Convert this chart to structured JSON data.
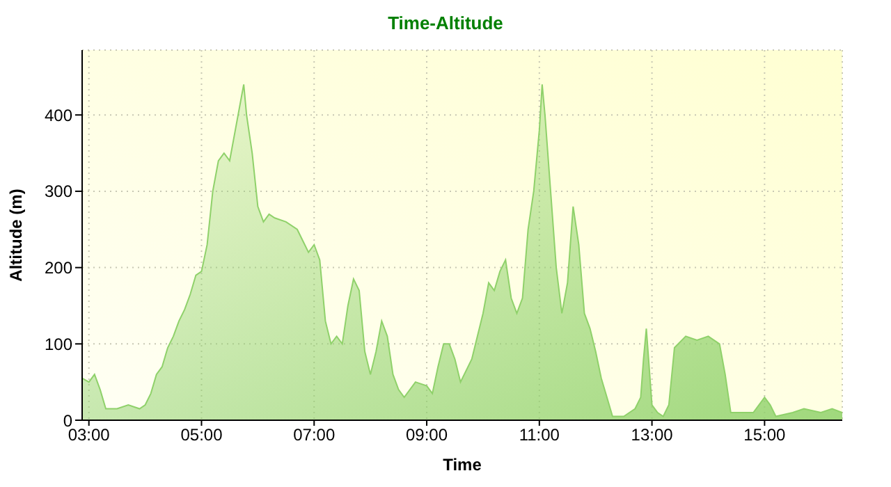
{
  "chart_data": {
    "type": "area",
    "title": "Time-Altitude",
    "xlabel": "Time",
    "ylabel": "Altitude (m)",
    "x": [
      2.88,
      3.0,
      3.1,
      3.2,
      3.3,
      3.5,
      3.7,
      3.9,
      4.0,
      4.1,
      4.2,
      4.3,
      4.4,
      4.5,
      4.6,
      4.7,
      4.8,
      4.9,
      5.0,
      5.1,
      5.2,
      5.3,
      5.4,
      5.5,
      5.6,
      5.7,
      5.75,
      5.8,
      5.9,
      6.0,
      6.1,
      6.2,
      6.3,
      6.5,
      6.7,
      6.8,
      6.9,
      7.0,
      7.1,
      7.2,
      7.3,
      7.4,
      7.5,
      7.6,
      7.7,
      7.8,
      7.9,
      8.0,
      8.1,
      8.2,
      8.3,
      8.4,
      8.5,
      8.6,
      8.8,
      9.0,
      9.1,
      9.2,
      9.3,
      9.4,
      9.5,
      9.6,
      9.8,
      9.9,
      10.0,
      10.1,
      10.2,
      10.3,
      10.4,
      10.5,
      10.6,
      10.7,
      10.8,
      10.9,
      11.0,
      11.05,
      11.1,
      11.2,
      11.3,
      11.4,
      11.5,
      11.6,
      11.7,
      11.8,
      11.9,
      12.0,
      12.1,
      12.2,
      12.3,
      12.5,
      12.6,
      12.7,
      12.8,
      12.85,
      12.9,
      13.0,
      13.1,
      13.2,
      13.3,
      13.4,
      13.6,
      13.8,
      14.0,
      14.2,
      14.3,
      14.4,
      14.6,
      14.8,
      15.0,
      15.1,
      15.2,
      15.5,
      15.7,
      16.0,
      16.2,
      16.38
    ],
    "series": [
      {
        "color": "#8fd16a",
        "values": [
          55,
          50,
          60,
          40,
          15,
          15,
          20,
          15,
          20,
          35,
          60,
          70,
          95,
          110,
          130,
          145,
          165,
          190,
          195,
          230,
          300,
          340,
          350,
          340,
          380,
          420,
          440,
          400,
          350,
          280,
          260,
          270,
          265,
          260,
          250,
          235,
          220,
          230,
          210,
          130,
          100,
          110,
          100,
          150,
          185,
          170,
          90,
          60,
          90,
          130,
          110,
          60,
          40,
          30,
          50,
          45,
          35,
          70,
          100,
          100,
          80,
          50,
          80,
          110,
          140,
          180,
          170,
          195,
          210,
          160,
          140,
          160,
          250,
          300,
          380,
          440,
          400,
          300,
          200,
          140,
          180,
          280,
          230,
          140,
          120,
          90,
          55,
          30,
          5,
          5,
          10,
          15,
          30,
          80,
          120,
          20,
          10,
          5,
          20,
          95,
          110,
          105,
          110,
          100,
          60,
          10,
          10,
          10,
          30,
          20,
          5,
          10,
          15,
          10,
          15,
          10
        ]
      }
    ],
    "xlim": [
      2.88,
      16.38
    ],
    "ylim": [
      0,
      485
    ],
    "xticks": [
      {
        "value": 3,
        "label": "03:00"
      },
      {
        "value": 5,
        "label": "05:00"
      },
      {
        "value": 7,
        "label": "07:00"
      },
      {
        "value": 9,
        "label": "09:00"
      },
      {
        "value": 11,
        "label": "11:00"
      },
      {
        "value": 13,
        "label": "13:00"
      },
      {
        "value": 15,
        "label": "15:00"
      }
    ],
    "yticks": [
      0,
      100,
      200,
      300,
      400
    ],
    "grid": true
  }
}
